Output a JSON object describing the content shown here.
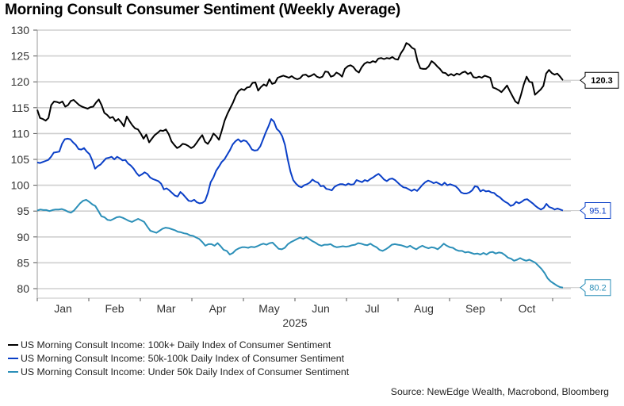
{
  "chart_data": {
    "type": "line",
    "title": "Morning Consult Consumer Sentiment (Weekly Average)",
    "xlabel": "2025",
    "ylabel": "",
    "ylim": [
      80,
      130
    ],
    "yticks": [
      80,
      85,
      90,
      95,
      100,
      105,
      110,
      115,
      120,
      125,
      130
    ],
    "x_tick_labels": [
      "Jan",
      "Feb",
      "Mar",
      "Apr",
      "May",
      "Jun",
      "Jul",
      "Aug",
      "Sep",
      "Oct"
    ],
    "x_year_label": "2025",
    "x_range_months": [
      0,
      10.2
    ],
    "grid": true,
    "legend_position": "bottom-left",
    "series": [
      {
        "name": "US Morning Consult Income: 100k+ Daily Index of Consumer Sentiment",
        "color": "#000000",
        "last_value_label": "120.3",
        "values": [
          114.6,
          113.0,
          112.8,
          112.5,
          113.0,
          115.5,
          116.2,
          116.1,
          115.9,
          116.2,
          115.2,
          115.5,
          116.3,
          116.5,
          116.0,
          115.5,
          115.2,
          115.0,
          114.8,
          115.1,
          115.2,
          116.0,
          116.6,
          115.5,
          114.0,
          113.6,
          113.0,
          113.2,
          112.4,
          112.8,
          112.2,
          111.4,
          113.3,
          112.4,
          111.6,
          111.0,
          110.8,
          110.0,
          109.0,
          109.8,
          108.3,
          109.0,
          109.7,
          110.1,
          110.6,
          110.5,
          110.8,
          109.9,
          108.5,
          107.8,
          107.2,
          107.5,
          108.0,
          107.9,
          107.6,
          107.2,
          107.5,
          108.2,
          109.0,
          109.7,
          108.4,
          108.0,
          108.8,
          110.0,
          109.5,
          108.8,
          110.6,
          112.5,
          113.8,
          114.9,
          116.0,
          117.3,
          118.2,
          118.6,
          118.4,
          118.9,
          119.0,
          119.8,
          119.9,
          118.3,
          119.0,
          119.5,
          119.2,
          120.5,
          119.6,
          119.8,
          120.8,
          121.0,
          121.2,
          121.0,
          120.8,
          121.1,
          120.7,
          120.5,
          120.7,
          121.3,
          121.4,
          121.0,
          121.2,
          121.5,
          121.0,
          120.8,
          121.0,
          122.0,
          121.9,
          121.0,
          121.2,
          121.8,
          121.5,
          121.0,
          122.5,
          123.0,
          123.2,
          122.9,
          122.2,
          121.8,
          122.8,
          123.5,
          123.8,
          123.7,
          124.0,
          123.8,
          124.5,
          124.6,
          124.4,
          124.6,
          124.5,
          124.8,
          124.4,
          124.3,
          125.5,
          126.3,
          127.5,
          127.2,
          126.6,
          126.3,
          124.0,
          122.6,
          122.5,
          122.5,
          123.0,
          124.0,
          123.6,
          123.0,
          122.5,
          121.8,
          121.7,
          121.2,
          121.5,
          121.2,
          121.6,
          121.4,
          121.8,
          122.0,
          121.5,
          121.8,
          120.9,
          120.8,
          121.0,
          120.8,
          121.2,
          121.0,
          120.8,
          118.9,
          118.7,
          118.4,
          118.0,
          118.6,
          119.3,
          118.2,
          117.2,
          116.2,
          115.8,
          117.5,
          119.5,
          121.0,
          120.0,
          119.9,
          117.5,
          118.0,
          118.5,
          119.2,
          121.6,
          122.3,
          121.7,
          121.4,
          121.6,
          121.0,
          120.3
        ]
      },
      {
        "name": "US Morning Consult Income: 50k-100k Daily Index of Consumer Sentiment",
        "color": "#0a3fc7",
        "last_value_label": "95.1",
        "values": [
          104.4,
          104.3,
          104.5,
          104.7,
          104.9,
          105.5,
          106.3,
          106.4,
          106.5,
          108.0,
          108.9,
          109.0,
          108.9,
          108.3,
          107.8,
          107.0,
          106.9,
          107.2,
          106.5,
          106.0,
          104.8,
          103.2,
          103.7,
          104.0,
          104.6,
          105.2,
          105.3,
          105.5,
          105.0,
          105.5,
          105.2,
          104.8,
          104.9,
          104.2,
          103.8,
          103.2,
          102.4,
          101.8,
          102.1,
          102.5,
          102.2,
          101.5,
          101.2,
          101.0,
          100.8,
          100.3,
          99.2,
          99.4,
          99.0,
          98.5,
          98.0,
          97.8,
          98.7,
          98.2,
          97.6,
          97.0,
          96.9,
          97.2,
          96.7,
          96.5,
          96.6,
          97.0,
          98.5,
          100.6,
          101.5,
          102.8,
          103.6,
          104.5,
          105.0,
          105.9,
          106.8,
          107.9,
          108.5,
          108.9,
          108.4,
          108.7,
          108.5,
          107.8,
          106.9,
          106.7,
          106.8,
          107.5,
          108.8,
          110.2,
          111.4,
          112.8,
          112.3,
          110.9,
          110.4,
          109.5,
          107.8,
          105.0,
          102.6,
          101.0,
          100.3,
          99.8,
          99.6,
          100.0,
          100.2,
          100.5,
          101.1,
          100.7,
          100.5,
          99.8,
          99.9,
          99.3,
          99.2,
          99.0,
          99.7,
          100.0,
          100.2,
          100.2,
          100.0,
          100.3,
          100.1,
          100.2,
          101.0,
          100.8,
          100.6,
          101.0,
          100.8,
          101.2,
          101.5,
          101.9,
          102.2,
          101.7,
          101.1,
          100.8,
          101.2,
          101.3,
          101.0,
          100.5,
          100.0,
          99.6,
          99.5,
          99.2,
          98.9,
          99.2,
          98.9,
          99.5,
          100.1,
          100.6,
          100.9,
          100.7,
          100.4,
          100.6,
          100.3,
          100.0,
          100.5,
          100.0,
          100.2,
          100.0,
          99.8,
          99.3,
          98.6,
          98.4,
          98.4,
          98.6,
          99.0,
          99.8,
          99.7,
          98.8,
          99.1,
          98.8,
          98.9,
          98.6,
          98.5,
          98.0,
          97.7,
          97.2,
          96.8,
          96.5,
          96.0,
          96.2,
          96.8,
          96.5,
          96.8,
          97.2,
          97.3,
          96.9,
          96.5,
          96.0,
          95.6,
          95.3,
          95.6,
          96.4,
          95.8,
          95.6,
          95.3,
          95.5,
          95.3,
          95.1
        ]
      },
      {
        "name": "US Morning Consult Income: Under 50k Daily Index of Consumer Sentiment",
        "color": "#2b8fb8",
        "last_value_label": "80.2",
        "values": [
          95.1,
          95.3,
          95.2,
          95.2,
          95.0,
          95.2,
          95.3,
          95.3,
          95.4,
          95.2,
          94.9,
          94.7,
          95.1,
          95.8,
          96.5,
          97.0,
          97.2,
          96.8,
          96.3,
          96.0,
          95.0,
          94.0,
          93.8,
          93.3,
          93.2,
          93.5,
          93.8,
          93.9,
          93.7,
          93.4,
          93.1,
          92.9,
          93.2,
          93.5,
          93.2,
          92.9,
          92.0,
          91.2,
          91.0,
          90.8,
          91.2,
          91.6,
          91.8,
          91.7,
          91.5,
          91.3,
          91.0,
          90.9,
          90.7,
          90.6,
          90.3,
          90.2,
          89.9,
          89.6,
          89.0,
          88.3,
          88.6,
          88.6,
          88.3,
          88.8,
          88.2,
          87.5,
          87.3,
          86.6,
          86.9,
          87.5,
          87.8,
          88.0,
          88.0,
          87.9,
          88.1,
          88.0,
          88.2,
          88.5,
          88.7,
          88.5,
          88.8,
          88.9,
          88.3,
          87.7,
          87.6,
          87.9,
          88.6,
          89.0,
          89.3,
          89.6,
          89.9,
          89.6,
          90.0,
          89.6,
          89.2,
          88.9,
          88.5,
          88.3,
          88.5,
          88.5,
          88.6,
          88.2,
          88.0,
          88.1,
          88.2,
          88.1,
          88.2,
          88.4,
          88.5,
          88.8,
          88.7,
          88.5,
          88.4,
          88.7,
          88.3,
          88.0,
          87.5,
          87.3,
          87.6,
          88.0,
          88.5,
          88.6,
          88.5,
          88.4,
          88.2,
          88.0,
          88.3,
          87.9,
          87.6,
          88.0,
          88.3,
          88.0,
          87.8,
          88.0,
          87.9,
          87.6,
          88.1,
          88.7,
          88.3,
          88.0,
          87.9,
          87.5,
          87.3,
          87.3,
          87.0,
          87.1,
          86.9,
          86.7,
          86.8,
          86.6,
          86.9,
          86.6,
          87.0,
          87.1,
          86.8,
          87.0,
          86.9,
          86.5,
          86.0,
          85.8,
          85.4,
          85.6,
          85.9,
          85.6,
          85.4,
          85.6,
          85.3,
          85.0,
          84.4,
          83.8,
          83.0,
          82.0,
          81.4,
          81.0,
          80.6,
          80.3,
          80.2
        ]
      }
    ],
    "annotations": [
      "120.3",
      "95.1",
      "80.2"
    ]
  },
  "legend": {
    "items": [
      {
        "label": "US Morning Consult Income: 100k+ Daily Index of Consumer Sentiment",
        "color": "#000000"
      },
      {
        "label": "US Morning Consult Income: 50k-100k Daily Index of Consumer Sentiment",
        "color": "#0a3fc7"
      },
      {
        "label": "US Morning Consult Income: Under 50k Daily Index of Consumer Sentiment",
        "color": "#2b8fb8"
      }
    ]
  },
  "source": "Source: NewEdge Wealth, Macrobond, Bloomberg"
}
